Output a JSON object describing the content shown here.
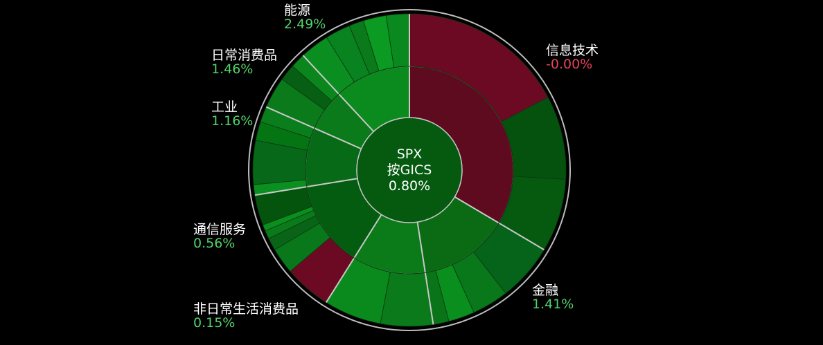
{
  "chart_data": {
    "type": "sunburst",
    "center": {
      "index": "SPX",
      "grouping": "按GICS",
      "change": "0.80%"
    },
    "sectors": [
      {
        "name": "信息技术",
        "change": "-0.00%",
        "weight": 31,
        "color": "#5e0a1f",
        "industries": [
          {
            "weight": 16,
            "color": "#6b0a22"
          },
          {
            "weight": 8,
            "color": "#05520e"
          },
          {
            "weight": 7,
            "color": "#055a10"
          }
        ]
      },
      {
        "name": "金融",
        "change": "1.41%",
        "weight": 13,
        "color": "#0a6b14",
        "industries": [
          {
            "weight": 5.5,
            "color": "#06631a"
          },
          {
            "weight": 3.5,
            "color": "#08781a"
          },
          {
            "weight": 2.5,
            "color": "#0a8f1e"
          },
          {
            "weight": 1.5,
            "color": "#0a7518"
          }
        ]
      },
      {
        "name": "非日常生活消费品",
        "change": "0.15%",
        "weight": 10.5,
        "color": "#0b7a18",
        "industries": [
          {
            "weight": 5,
            "color": "#0a7a1a"
          },
          {
            "weight": 5.5,
            "color": "#0a8a1c"
          }
        ]
      },
      {
        "name": "通信服务",
        "change": "0.56%",
        "weight": 12.5,
        "color": "#045c10",
        "industries": [
          {
            "weight": 4.5,
            "color": "#6b0a22"
          },
          {
            "weight": 2.5,
            "color": "#08781a"
          },
          {
            "weight": 1.2,
            "color": "#096418"
          },
          {
            "weight": 0.8,
            "color": "#0a7a1a"
          },
          {
            "weight": 0.6,
            "color": "#0a8f1e"
          },
          {
            "weight": 2.9,
            "color": "#04540e"
          }
        ]
      },
      {
        "name": "工业",
        "change": "1.16%",
        "weight": 8.5,
        "color": "#076a16",
        "industries": [
          {
            "weight": 1,
            "color": "#0a9020"
          },
          {
            "weight": 4.2,
            "color": "#066818"
          },
          {
            "weight": 1.8,
            "color": "#057514"
          },
          {
            "weight": 1.5,
            "color": "#0a7e1c"
          }
        ]
      },
      {
        "name": "日常消费品",
        "change": "1.46%",
        "weight": 6,
        "color": "#0a7a1a",
        "industries": [
          {
            "weight": 3,
            "color": "#0a7a1a"
          },
          {
            "weight": 1.6,
            "color": "#075f14"
          },
          {
            "weight": 1.4,
            "color": "#0a861c"
          }
        ]
      },
      {
        "name": "能源",
        "change": "2.49%",
        "weight": 11,
        "color": "#0b8a1e",
        "industries": [
          {
            "weight": 2.8,
            "color": "#0a8e20"
          },
          {
            "weight": 2.4,
            "color": "#098220"
          },
          {
            "weight": 1.4,
            "color": "#0a7a1a"
          },
          {
            "weight": 2.2,
            "color": "#0b9a22"
          },
          {
            "weight": 2.2,
            "color": "#0a8a1e"
          }
        ]
      }
    ],
    "colors": {
      "positive_text": "#52d36a",
      "negative_text": "#e8435a",
      "center_fill": "#055a10",
      "separator": "#c8c8c8",
      "outline": "#bdbdbd"
    }
  }
}
